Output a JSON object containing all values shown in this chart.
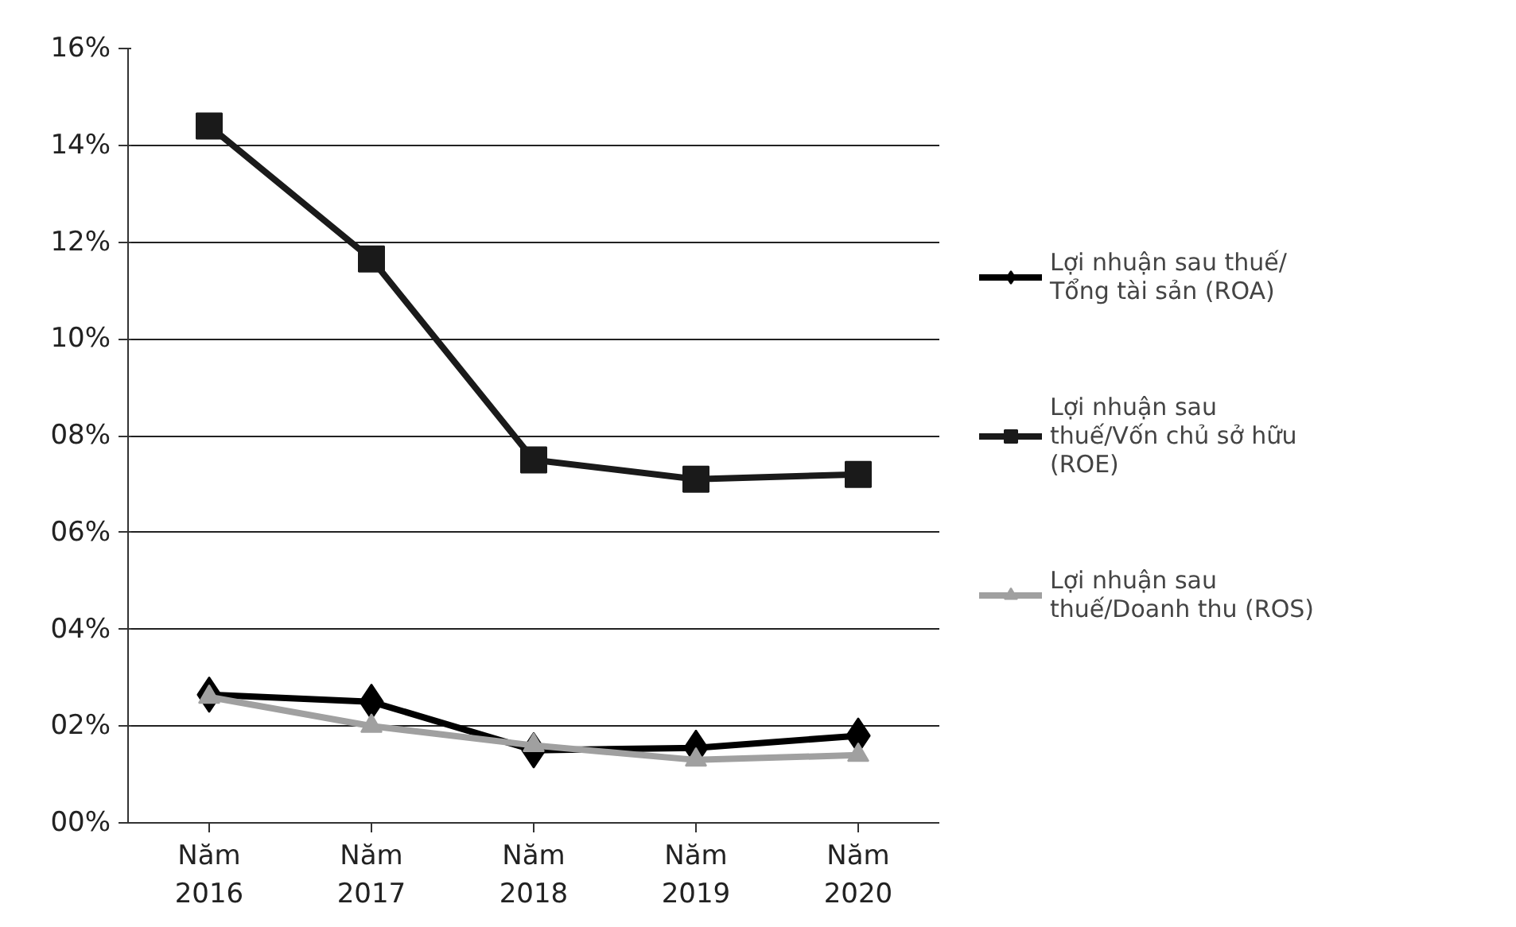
{
  "chart_data": {
    "type": "line",
    "categories": [
      "Năm 2016",
      "Năm 2017",
      "Năm 2018",
      "Năm 2019",
      "Năm 2020"
    ],
    "series": [
      {
        "name": "Lợi nhuận sau thuế/ Tổng tài sản (ROA)",
        "color": "#000000",
        "marker": "diamond",
        "values": [
          2.65,
          2.5,
          1.5,
          1.55,
          1.8
        ]
      },
      {
        "name": "Lợi nhuận sau thuế/Vốn chủ sở hữu (ROE)",
        "color": "#1a1a1a",
        "marker": "square",
        "values": [
          14.4,
          11.65,
          7.5,
          7.1,
          7.2
        ]
      },
      {
        "name": "Lợi nhuận sau thuế/Doanh thu (ROS)",
        "color": "#a0a0a0",
        "marker": "triangle",
        "values": [
          2.6,
          2.0,
          1.6,
          1.3,
          1.4
        ]
      }
    ],
    "ylim": [
      0,
      16
    ],
    "yticks": [
      {
        "value": 0,
        "label": "00%"
      },
      {
        "value": 2,
        "label": "02%"
      },
      {
        "value": 4,
        "label": "04%"
      },
      {
        "value": 6,
        "label": "06%"
      },
      {
        "value": 8,
        "label": "08%"
      },
      {
        "value": 10,
        "label": "10%"
      },
      {
        "value": 12,
        "label": "12%"
      },
      {
        "value": 14,
        "label": "14%"
      },
      {
        "value": 16,
        "label": "16%"
      }
    ],
    "grid": "y",
    "legend": "right",
    "line_style": "solid"
  }
}
